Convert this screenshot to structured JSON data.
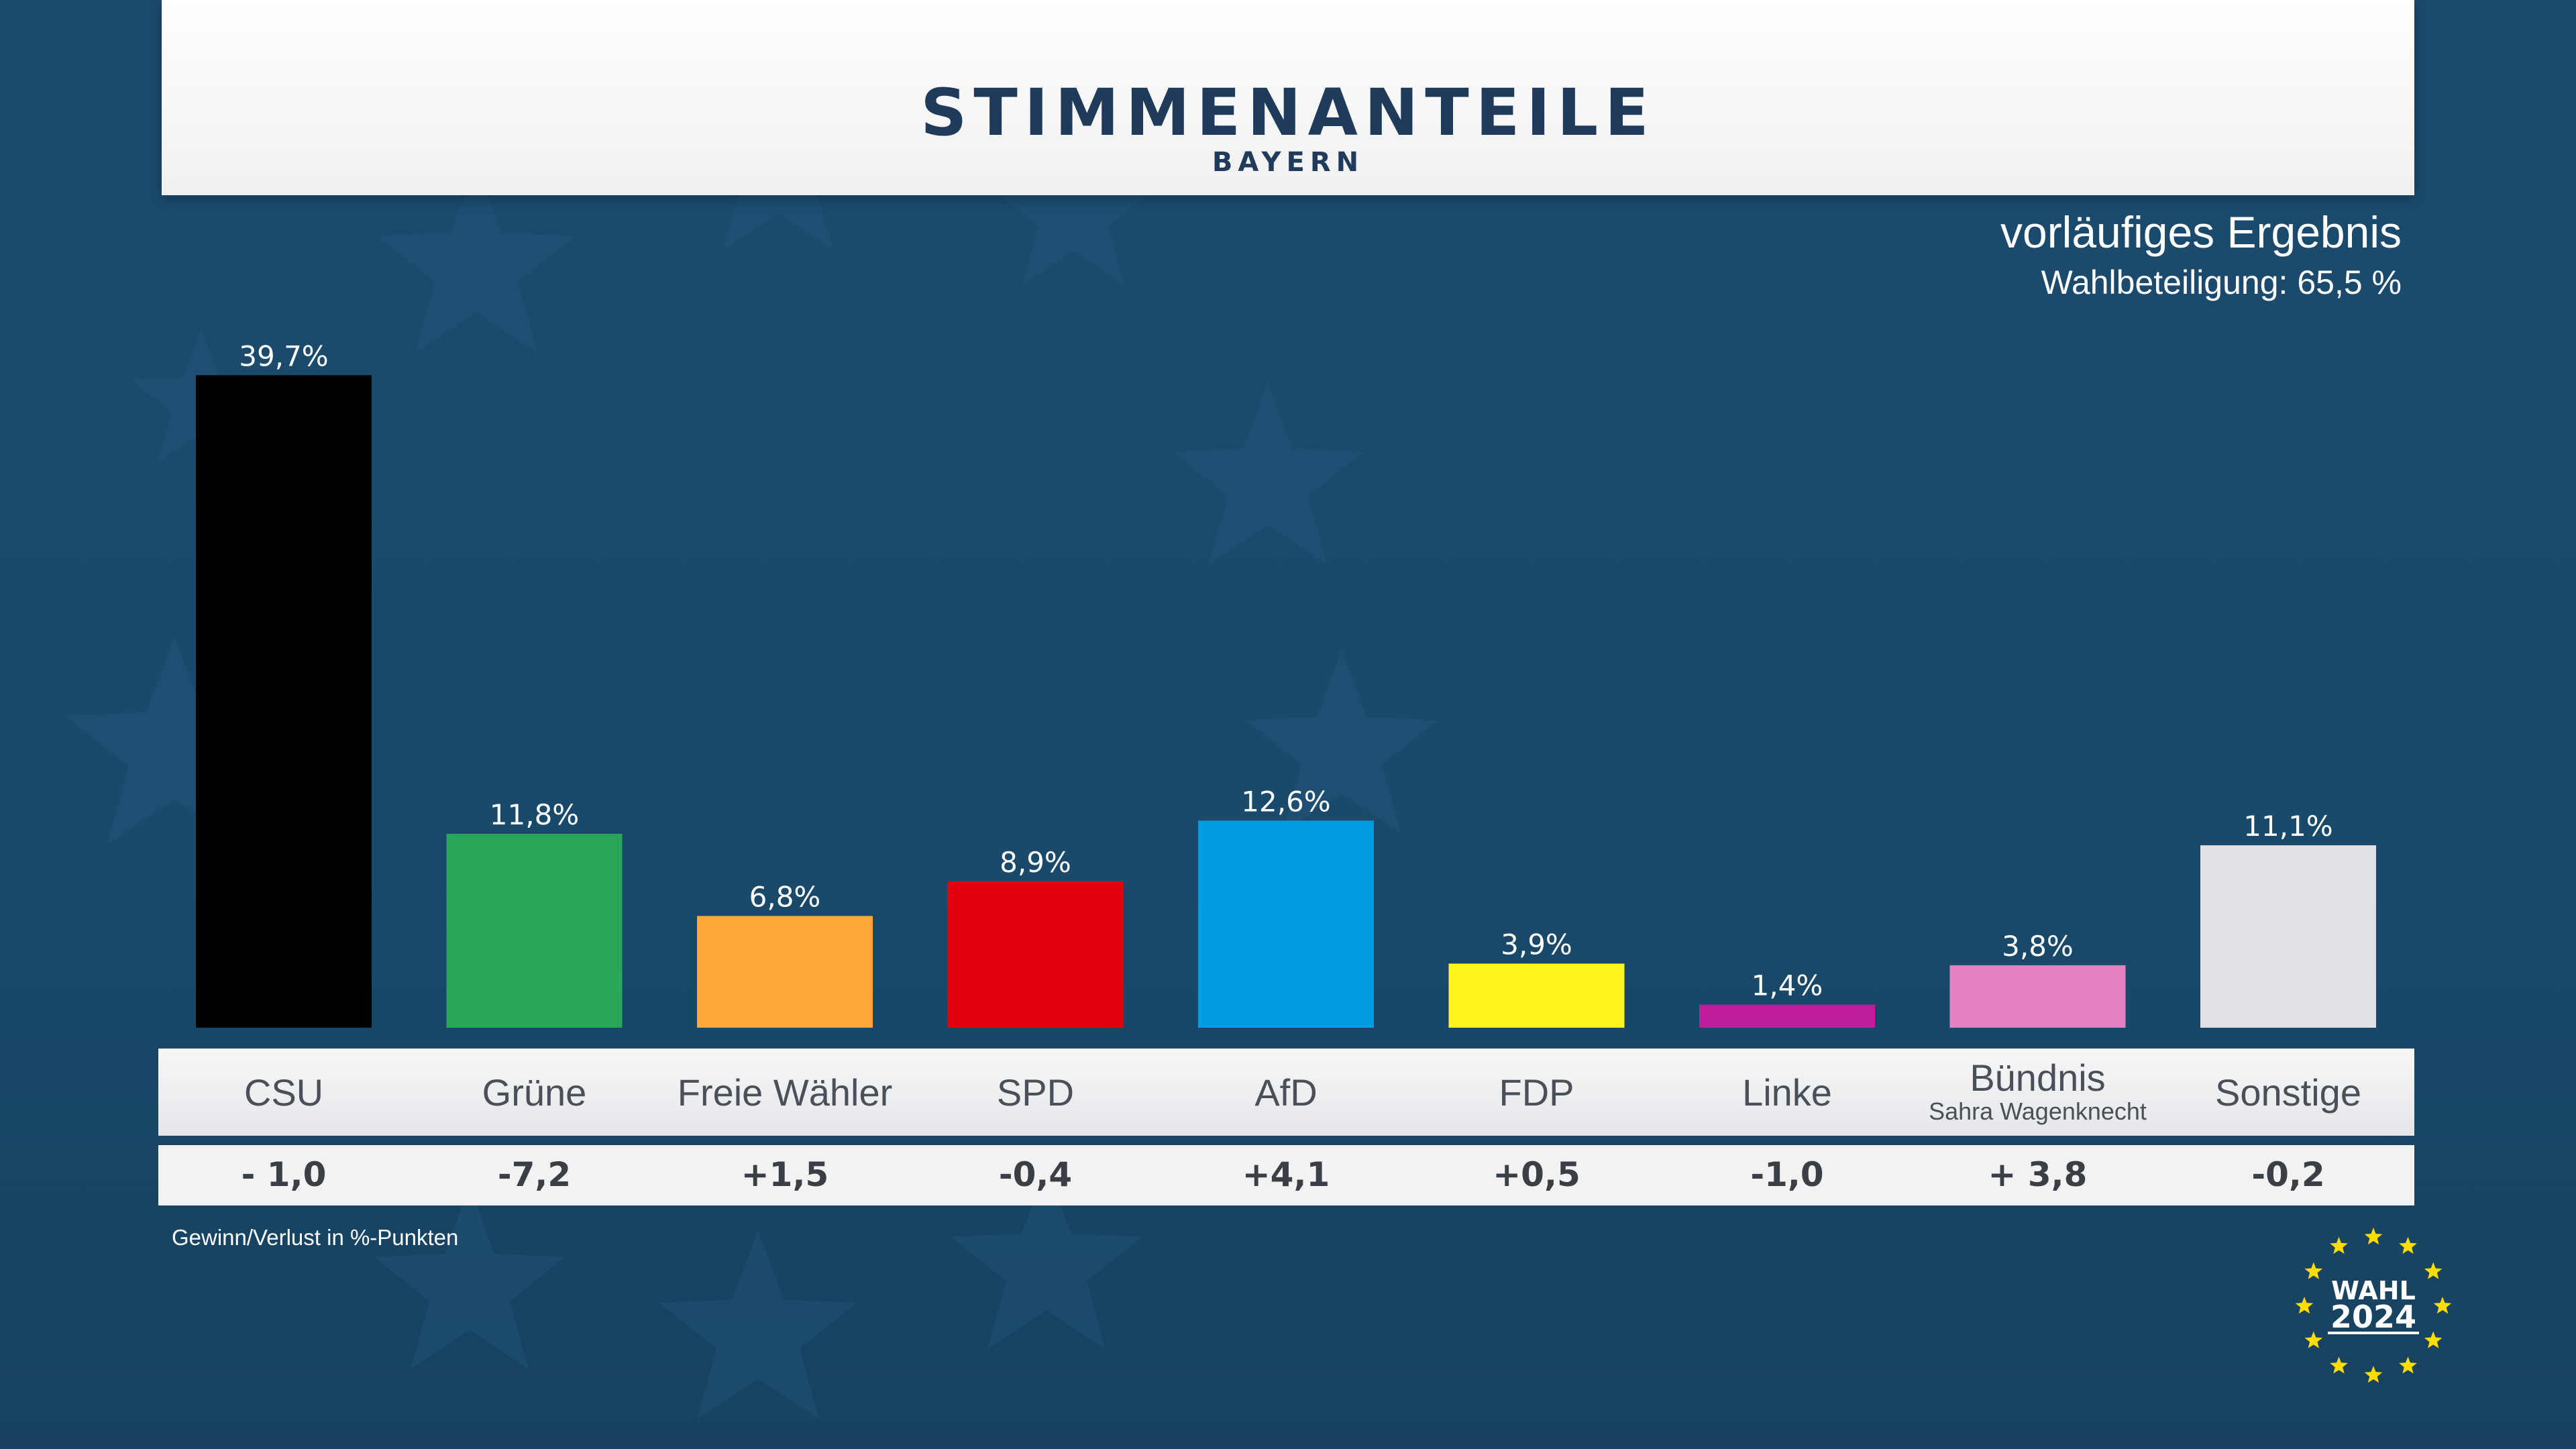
{
  "header": {
    "title": "STIMMENANTEILE",
    "subtitle": "BAYERN"
  },
  "status": "vorläufiges Ergebnis",
  "turnout": "Wahlbeteiligung: 65,5 %",
  "footnote": "Gewinn/Verlust in %-Punkten",
  "logo": {
    "line1": "WAHL",
    "line2": "2024",
    "icon": "eu-stars-circle-icon"
  },
  "colors": {
    "background": "#1a4a6b",
    "header_text": "#1f3a5a"
  },
  "chart_data": {
    "type": "bar",
    "title": "STIMMENANTEILE",
    "subtitle": "BAYERN",
    "categories": [
      "CSU",
      "Grüne",
      "Freie Wähler",
      "SPD",
      "AfD",
      "FDP",
      "Linke",
      "Bündnis",
      "Sonstige"
    ],
    "category_sublabels": [
      "",
      "",
      "",
      "",
      "",
      "",
      "",
      "Sahra Wagenknecht",
      ""
    ],
    "values": [
      39.7,
      11.8,
      6.8,
      8.9,
      12.6,
      3.9,
      1.4,
      3.8,
      11.1
    ],
    "value_labels": [
      "39,7%",
      "11,8%",
      "6,8%",
      "8,9%",
      "12,6%",
      "3,9%",
      "1,4%",
      "3,8%",
      "11,1%"
    ],
    "changes": [
      "- 1,0",
      "-7,2",
      "+1,5",
      "-0,4",
      "+4,1",
      "+0,5",
      "-1,0",
      "+ 3,8",
      "-0,2"
    ],
    "colors": [
      "#000000",
      "#28a65a",
      "#fca83a",
      "#e2000f",
      "#009ee0",
      "#fff61e",
      "#be1d9c",
      "#e583c2",
      "#dfe1e6"
    ],
    "ylim": [
      0,
      40
    ],
    "grid": false,
    "legend": "none"
  }
}
